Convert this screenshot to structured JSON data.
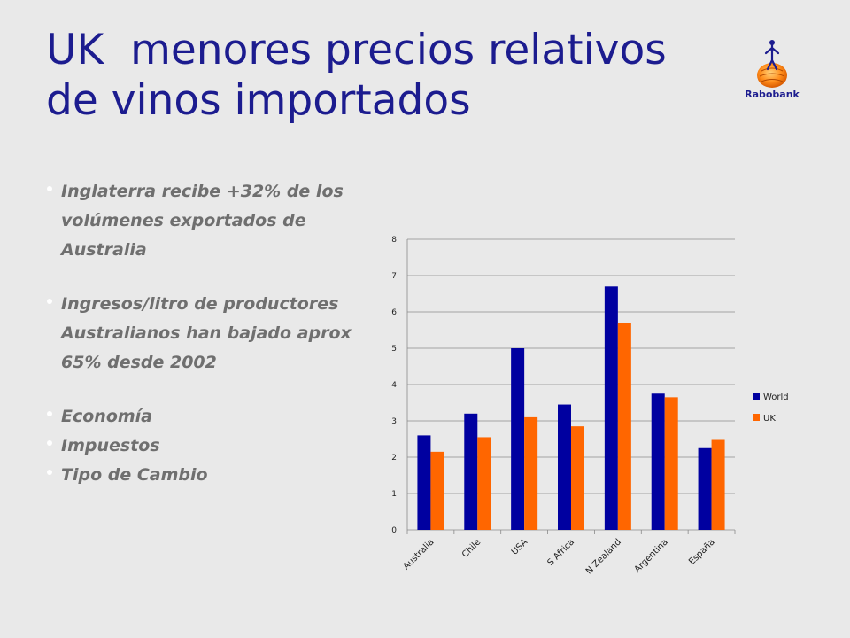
{
  "title": {
    "line1": "UK  menores precios relativos",
    "line2": "de vinos importados"
  },
  "logo": {
    "name": "Rabobank"
  },
  "bullets": [
    {
      "pre": "Inglaterra recibe ",
      "underline": "+",
      "post": "32% de los volúmenes exportados de Australia"
    },
    {
      "text": "Ingresos/litro de productores Australianos han bajado aprox 65% desde 2002"
    },
    {
      "text": "Economía"
    },
    {
      "text": "Impuestos"
    },
    {
      "text": "Tipo de Cambio"
    }
  ],
  "colors": {
    "title": "#1c1c8f",
    "world": "#0000a0",
    "uk": "#ff6600"
  },
  "chart_data": {
    "type": "bar",
    "categories": [
      "Australia",
      "Chile",
      "USA",
      "S Africa",
      "N Zealand",
      "Argentina",
      "España"
    ],
    "series": [
      {
        "name": "World",
        "values": [
          2.6,
          3.2,
          5.0,
          3.45,
          6.7,
          3.75,
          2.25
        ]
      },
      {
        "name": "UK",
        "values": [
          2.15,
          2.55,
          3.1,
          2.85,
          5.7,
          3.65,
          2.5
        ]
      }
    ],
    "ylim": [
      0,
      8
    ],
    "yticks": [
      "0",
      "1",
      "2",
      "3",
      "4",
      "5",
      "6",
      "7",
      "8"
    ],
    "grid": true,
    "legend_position": "right",
    "xlabel": "",
    "ylabel": "",
    "title": ""
  }
}
